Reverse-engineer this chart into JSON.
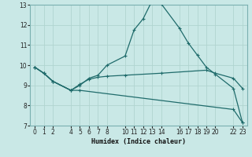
{
  "xlabel": "Humidex (Indice chaleur)",
  "background_color": "#c9e8e6",
  "grid_color": "#b0d4d0",
  "line_color": "#1f6b6b",
  "xlim": [
    -0.5,
    23.5
  ],
  "ylim": [
    7,
    13
  ],
  "xticks": [
    0,
    1,
    2,
    4,
    5,
    6,
    7,
    8,
    10,
    11,
    12,
    13,
    14,
    16,
    17,
    18,
    19,
    20,
    22,
    23
  ],
  "yticks": [
    7,
    8,
    9,
    10,
    11,
    12,
    13
  ],
  "curves": [
    {
      "x": [
        0,
        1,
        2,
        4,
        5,
        6,
        7,
        8,
        10,
        11,
        12,
        13,
        14,
        16,
        17,
        18,
        19,
        20,
        22,
        23
      ],
      "y": [
        9.9,
        9.6,
        9.2,
        8.75,
        9.0,
        9.35,
        9.5,
        10.0,
        10.45,
        11.75,
        12.3,
        13.2,
        13.05,
        11.85,
        11.1,
        10.5,
        9.9,
        9.55,
        8.85,
        7.15
      ]
    },
    {
      "x": [
        0,
        1,
        2,
        4,
        5,
        6,
        7,
        8,
        10,
        14,
        19,
        20,
        22,
        23
      ],
      "y": [
        9.9,
        9.6,
        9.2,
        8.75,
        9.05,
        9.3,
        9.4,
        9.45,
        9.5,
        9.6,
        9.75,
        9.6,
        9.35,
        8.85
      ]
    },
    {
      "x": [
        0,
        1,
        2,
        4,
        5,
        22,
        23
      ],
      "y": [
        9.9,
        9.6,
        9.2,
        8.75,
        8.75,
        7.8,
        7.15
      ]
    }
  ]
}
